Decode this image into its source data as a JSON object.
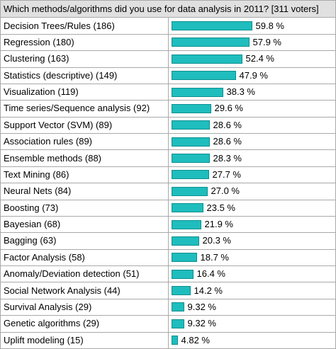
{
  "chart_data": {
    "type": "bar",
    "orientation": "horizontal",
    "title": "Which methods/algorithms did you use for data analysis in 2011? [311 voters]",
    "categories": [
      "Decision Trees/Rules (186)",
      "Regression (180)",
      "Clustering (163)",
      "Statistics (descriptive) (149)",
      "Visualization (119)",
      "Time series/Sequence analysis (92)",
      "Support Vector (SVM) (89)",
      "Association rules (89)",
      "Ensemble methods (88)",
      "Text Mining (86)",
      "Neural Nets (84)",
      "Boosting (73)",
      "Bayesian (68)",
      "Bagging (63)",
      "Factor Analysis (58)",
      "Anomaly/Deviation detection (51)",
      "Social Network Analysis (44)",
      "Survival Analysis (29)",
      "Genetic algorithms (29)",
      "Uplift modeling (15)"
    ],
    "values": [
      59.8,
      57.9,
      52.4,
      47.9,
      38.3,
      29.6,
      28.6,
      28.6,
      28.3,
      27.7,
      27.0,
      23.5,
      21.9,
      20.3,
      18.7,
      16.4,
      14.2,
      9.32,
      9.32,
      4.82
    ],
    "value_labels": [
      "59.8 %",
      "57.9 %",
      "52.4 %",
      "47.9 %",
      "38.3 %",
      "29.6 %",
      "28.6 %",
      "28.6 %",
      "28.3 %",
      "27.7 %",
      "27.0 %",
      "23.5 %",
      "21.9 %",
      "20.3 %",
      "18.7 %",
      "16.4 %",
      "14.2 %",
      "9.32 %",
      "9.32 %",
      "4.82 %"
    ],
    "bar_color": "#1fbdbd",
    "grid": true
  }
}
